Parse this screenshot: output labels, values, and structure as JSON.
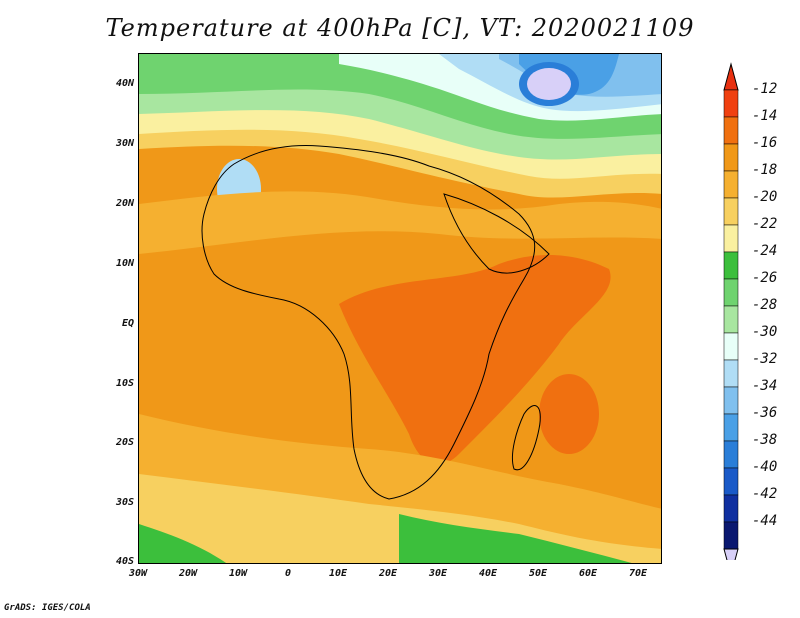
{
  "title": "Temperature at 400hPa [C], VT: 2020021109",
  "credit": "GrADS: IGES/COLA",
  "map": {
    "lat_labels": [
      "40N",
      "30N",
      "20N",
      "10N",
      "EQ",
      "10S",
      "20S",
      "30S",
      "40S"
    ],
    "lon_labels": [
      "30W",
      "20W",
      "10W",
      "0",
      "10E",
      "20E",
      "30E",
      "40E",
      "50E",
      "60E",
      "70E"
    ],
    "lon_range": [
      -30,
      75
    ],
    "lat_range": [
      -40,
      45
    ]
  },
  "colorbar": {
    "labels": [
      "-12",
      "-14",
      "-16",
      "-18",
      "-20",
      "-22",
      "-24",
      "-26",
      "-28",
      "-30",
      "-32",
      "-34",
      "-36",
      "-38",
      "-40",
      "-42",
      "-44"
    ],
    "colors": [
      "#f04010",
      "#f07010",
      "#f09818",
      "#f5b030",
      "#f7d060",
      "#faf0a0",
      "#3cbf3c",
      "#6fd36f",
      "#a8e6a0",
      "#e8fff8",
      "#b0ddf5",
      "#80c0ee",
      "#4aa0e6",
      "#2a7ed8",
      "#1a5ac8",
      "#1030a0",
      "#0a1870"
    ],
    "top_arrow_color": "#e83010",
    "bottom_arrow_color": "#d8d0f8"
  }
}
